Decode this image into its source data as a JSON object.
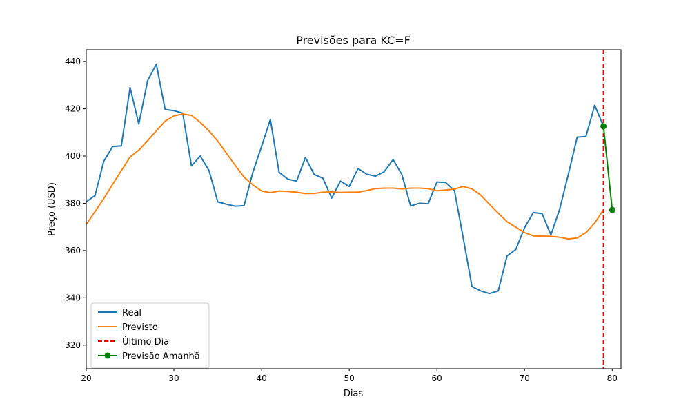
{
  "chart_data": {
    "type": "line",
    "title": "Previsões para KC=F",
    "xlabel": "Dias",
    "ylabel": "Preço (USD)",
    "xlim": [
      20,
      81
    ],
    "ylim": [
      310,
      445
    ],
    "xticks": [
      20,
      30,
      40,
      50,
      60,
      70,
      80
    ],
    "yticks": [
      320,
      340,
      360,
      380,
      400,
      420,
      440
    ],
    "grid": false,
    "legend_position": "lower-left",
    "series": [
      {
        "name": "Real",
        "color": "#1f77b4",
        "style": "solid",
        "x": [
          20,
          21,
          22,
          23,
          24,
          25,
          26,
          27,
          28,
          29,
          30,
          31,
          32,
          33,
          34,
          35,
          36,
          37,
          38,
          39,
          40,
          41,
          42,
          43,
          44,
          45,
          46,
          47,
          48,
          49,
          50,
          51,
          52,
          53,
          54,
          55,
          56,
          57,
          58,
          59,
          60,
          61,
          62,
          63,
          64,
          65,
          66,
          67,
          68,
          69,
          70,
          71,
          72,
          73,
          74,
          75,
          76,
          77,
          78,
          79
        ],
        "values": [
          380.6,
          383.3,
          397.8,
          404,
          404.3,
          429,
          413.5,
          431.9,
          438.9,
          419.7,
          419.2,
          418.2,
          395.8,
          400,
          393.9,
          380.6,
          379.6,
          378.8,
          379,
          393.1,
          404.1,
          415.5,
          393.1,
          390.2,
          389.4,
          399.4,
          392.2,
          390.6,
          382.2,
          389.4,
          387.1,
          394.7,
          392.3,
          391.5,
          393.4,
          398.5,
          392.2,
          378.9,
          380,
          379.8,
          389,
          388.8,
          385.4,
          365.4,
          344.8,
          342.9,
          341.8,
          342.9,
          357.7,
          360.4,
          369.6,
          376.1,
          375.6,
          366.6,
          377.5,
          392.4,
          408,
          408.3,
          421.5,
          412.6
        ]
      },
      {
        "name": "Previsto",
        "color": "#ff7f0e",
        "style": "solid",
        "x": [
          20,
          21,
          22,
          23,
          24,
          25,
          26,
          27,
          28,
          29,
          30,
          31,
          32,
          33,
          34,
          35,
          36,
          37,
          38,
          39,
          40,
          41,
          42,
          43,
          44,
          45,
          46,
          47,
          48,
          49,
          50,
          51,
          52,
          53,
          54,
          55,
          56,
          57,
          58,
          59,
          60,
          61,
          62,
          63,
          64,
          65,
          66,
          67,
          68,
          69,
          70,
          71,
          72,
          73,
          74,
          75,
          76,
          77,
          78,
          79
        ],
        "values": [
          371,
          376.5,
          382,
          388,
          393.8,
          399.6,
          402.5,
          406.5,
          410.7,
          414.8,
          417,
          417.8,
          417.2,
          414.3,
          410.6,
          406.3,
          401.2,
          396,
          391.1,
          387.8,
          385.2,
          384.5,
          385.2,
          385,
          384.7,
          384.1,
          384.2,
          384.7,
          384.8,
          384.6,
          384.7,
          384.7,
          385.4,
          386.2,
          386.4,
          386.4,
          386.1,
          386.4,
          386.4,
          386.2,
          385.3,
          385.6,
          386,
          387.1,
          386.1,
          383.5,
          379.6,
          375.8,
          372.2,
          369.9,
          367.6,
          366.2,
          366.1,
          366,
          365.6,
          364.9,
          365.3,
          367.6,
          371.6,
          377.3
        ]
      },
      {
        "name": "Último Dia",
        "color": "#ff0000",
        "style": "dashed",
        "type": "vline",
        "x": 79
      },
      {
        "name": "Previsão Amanhã",
        "color": "#008000",
        "style": "solid",
        "marker": "circle",
        "x": [
          79,
          80
        ],
        "values": [
          412.6,
          377.2
        ]
      }
    ]
  }
}
